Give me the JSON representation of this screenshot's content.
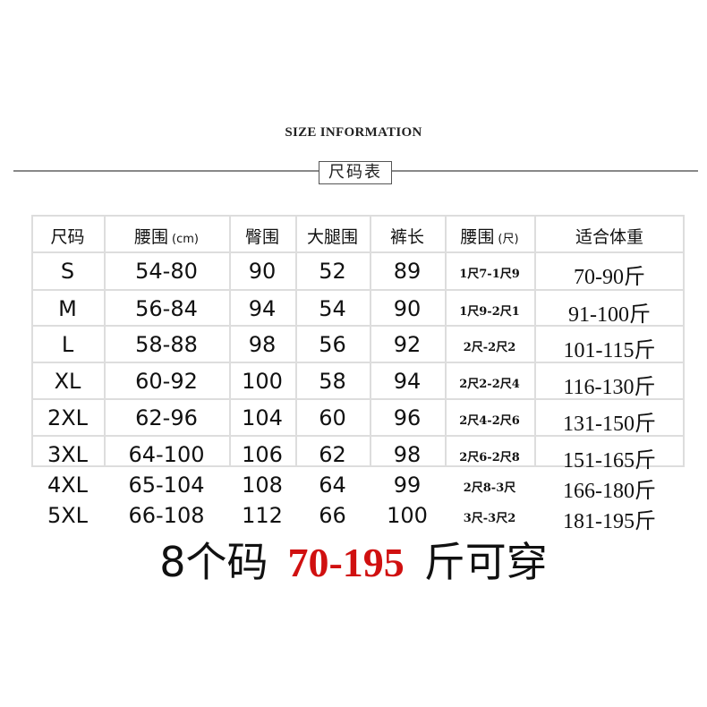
{
  "title": "SIZE INFORMATION",
  "subtitle": "尺码表",
  "table": {
    "headers": [
      "尺码",
      "腰围",
      "(cm)",
      "臀围",
      "大腿围",
      "裤长",
      "腰围",
      "(尺)",
      "适合体重"
    ],
    "rows": [
      [
        "S",
        "54-80",
        "90",
        "52",
        "89",
        "1尺7-1尺9",
        "70-90斤"
      ],
      [
        "M",
        "56-84",
        "94",
        "54",
        "90",
        "1尺9-2尺1",
        "91-100斤"
      ],
      [
        "L",
        "58-88",
        "98",
        "56",
        "92",
        "2尺-2尺2",
        "101-115斤"
      ],
      [
        "XL",
        "60-92",
        "100",
        "58",
        "94",
        "2尺2-2尺4",
        "116-130斤"
      ],
      [
        "2XL",
        "62-96",
        "104",
        "60",
        "96",
        "2尺4-2尺6",
        "131-150斤"
      ],
      [
        "3XL",
        "64-100",
        "106",
        "62",
        "98",
        "2尺6-2尺8",
        "151-165斤"
      ],
      [
        "4XL",
        "65-104",
        "108",
        "64",
        "99",
        "2尺8-3尺",
        "166-180斤"
      ],
      [
        "5XL",
        "66-108",
        "112",
        "66",
        "100",
        "3尺-3尺2",
        "181-195斤"
      ]
    ]
  },
  "footer": {
    "prefix": "8个码",
    "range": "70-195",
    "suffix": "斤可穿",
    "accent": "#d01010"
  }
}
